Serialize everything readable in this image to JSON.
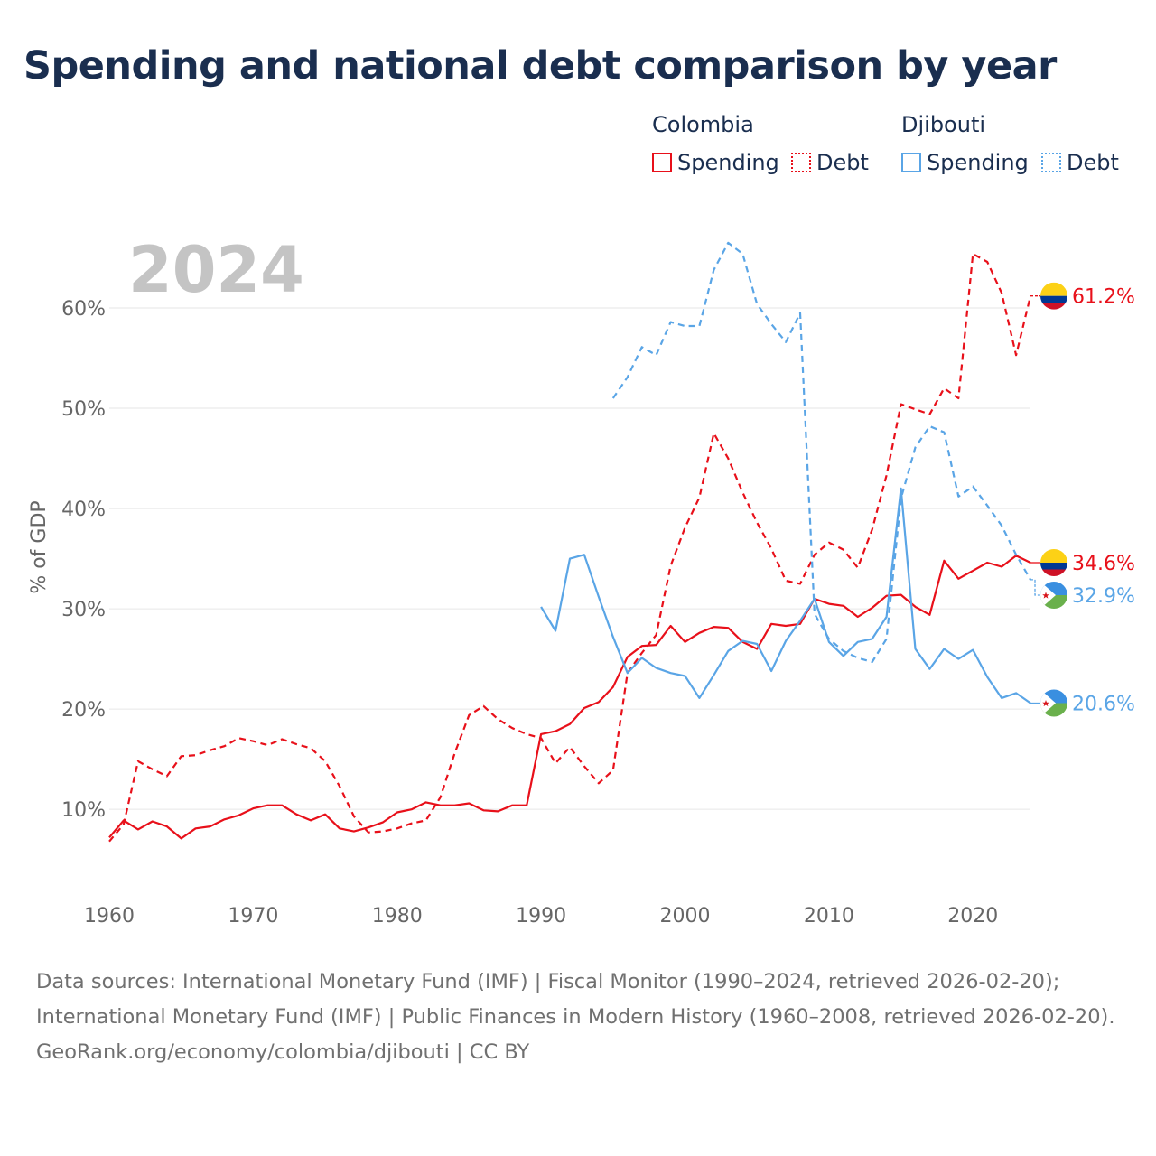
{
  "title": "Spending and national debt comparison by year",
  "legend": {
    "groups": [
      {
        "name": "Colombia",
        "items": [
          {
            "label": "Spending"
          },
          {
            "label": "Debt"
          }
        ]
      },
      {
        "name": "Djibouti",
        "items": [
          {
            "label": "Spending"
          },
          {
            "label": "Debt"
          }
        ]
      }
    ]
  },
  "year_label": "2024",
  "colors": {
    "colombia": "#e8101a",
    "djibouti": "#5aa5e6",
    "grid": "#e6e6e6",
    "year": "#c4c4c4",
    "title": "#1a2e4f"
  },
  "icons": {
    "colombia_flag": "colombia-flag-icon",
    "djibouti_flag": "djibouti-flag-icon"
  },
  "chart_data": {
    "type": "line",
    "title": "Spending and national debt comparison by year",
    "xlabel": "",
    "ylabel": "% of GDP",
    "xlim": [
      1960,
      2024
    ],
    "ylim": [
      2,
      70
    ],
    "x_ticks": [
      1960,
      1970,
      1980,
      1990,
      2000,
      2010,
      2020
    ],
    "x_tick_labels": [
      "1960",
      "1970",
      "1980",
      "1990",
      "2000",
      "2010",
      "2020"
    ],
    "y_ticks": [
      10,
      20,
      30,
      40,
      50,
      60
    ],
    "y_tick_labels": [
      "10%",
      "20%",
      "30%",
      "40%",
      "50%",
      "60%"
    ],
    "series": [
      {
        "name": "Colombia Spending",
        "country": "Colombia",
        "measure": "Spending",
        "style": "solid",
        "color": "#e8101a",
        "end_label": "34.6%",
        "x": [
          1960,
          1961,
          1962,
          1963,
          1964,
          1965,
          1966,
          1967,
          1968,
          1969,
          1970,
          1971,
          1972,
          1973,
          1974,
          1975,
          1976,
          1977,
          1978,
          1979,
          1980,
          1981,
          1982,
          1983,
          1984,
          1985,
          1986,
          1987,
          1988,
          1989,
          1990,
          1991,
          1992,
          1993,
          1994,
          1995,
          1996,
          1997,
          1998,
          1999,
          2000,
          2001,
          2002,
          2003,
          2004,
          2005,
          2006,
          2007,
          2008,
          2009,
          2010,
          2011,
          2012,
          2013,
          2014,
          2015,
          2016,
          2017,
          2018,
          2019,
          2020,
          2021,
          2022,
          2023,
          2024
        ],
        "values": [
          7.2,
          8.9,
          8.0,
          8.8,
          8.3,
          7.1,
          8.1,
          8.3,
          9.0,
          9.4,
          10.1,
          10.4,
          10.4,
          9.5,
          8.9,
          9.5,
          8.1,
          7.8,
          8.2,
          8.7,
          9.7,
          10.0,
          10.7,
          10.4,
          10.4,
          10.6,
          9.9,
          9.8,
          10.4,
          10.4,
          17.5,
          17.8,
          18.5,
          20.1,
          20.7,
          22.2,
          25.2,
          26.3,
          26.4,
          28.3,
          26.7,
          27.6,
          28.2,
          28.1,
          26.7,
          26.0,
          28.5,
          28.3,
          28.5,
          31.0,
          30.5,
          30.3,
          29.2,
          30.1,
          31.3,
          31.4,
          30.2,
          29.4,
          34.8,
          33.0,
          33.8,
          34.6,
          34.2,
          35.3,
          34.6
        ]
      },
      {
        "name": "Colombia Debt",
        "country": "Colombia",
        "measure": "Debt",
        "style": "dashed",
        "color": "#e8101a",
        "end_label": "61.2%",
        "x": [
          1960,
          1961,
          1962,
          1963,
          1964,
          1965,
          1966,
          1967,
          1968,
          1969,
          1970,
          1971,
          1972,
          1973,
          1974,
          1975,
          1976,
          1977,
          1978,
          1979,
          1980,
          1981,
          1982,
          1983,
          1984,
          1985,
          1986,
          1987,
          1988,
          1989,
          1990,
          1991,
          1992,
          1993,
          1994,
          1995,
          1996,
          1997,
          1998,
          1999,
          2000,
          2001,
          2002,
          2003,
          2004,
          2005,
          2006,
          2007,
          2008,
          2009,
          2010,
          2011,
          2012,
          2013,
          2014,
          2015,
          2016,
          2017,
          2018,
          2019,
          2020,
          2021,
          2022,
          2023,
          2024
        ],
        "values": [
          6.8,
          8.5,
          14.8,
          14.0,
          13.3,
          15.3,
          15.4,
          15.9,
          16.3,
          17.1,
          16.8,
          16.4,
          17.0,
          16.5,
          16.1,
          14.8,
          12.3,
          9.3,
          7.7,
          7.8,
          8.1,
          8.6,
          8.9,
          11.2,
          15.6,
          19.4,
          20.3,
          19.0,
          18.1,
          17.5,
          17.1,
          14.6,
          16.2,
          14.3,
          12.6,
          13.9,
          23.6,
          25.6,
          27.4,
          34.3,
          38.1,
          41.1,
          47.5,
          45.0,
          41.6,
          38.6,
          36.0,
          32.8,
          32.5,
          35.4,
          36.6,
          35.9,
          34.1,
          37.9,
          43.3,
          50.4,
          49.9,
          49.4,
          52.0,
          51.0,
          65.4,
          64.6,
          61.5,
          55.3,
          61.2
        ]
      },
      {
        "name": "Djibouti Spending",
        "country": "Djibouti",
        "measure": "Spending",
        "style": "solid",
        "color": "#5aa5e6",
        "end_label": "20.6%",
        "x": [
          1990,
          1991,
          1992,
          1993,
          1994,
          1995,
          1996,
          1997,
          1998,
          1999,
          2000,
          2001,
          2002,
          2003,
          2004,
          2005,
          2006,
          2007,
          2008,
          2009,
          2010,
          2011,
          2012,
          2013,
          2014,
          2015,
          2016,
          2017,
          2018,
          2019,
          2020,
          2021,
          2022,
          2023,
          2024
        ],
        "values": [
          30.2,
          27.8,
          35.0,
          35.4,
          31.2,
          27.2,
          23.6,
          25.1,
          24.1,
          23.6,
          23.3,
          21.1,
          23.4,
          25.8,
          26.8,
          26.5,
          23.8,
          26.8,
          28.8,
          31.0,
          26.7,
          25.3,
          26.7,
          27.0,
          29.2,
          42.0,
          26.0,
          24.0,
          26.0,
          25.0,
          25.9,
          23.2,
          21.1,
          21.6,
          20.6
        ]
      },
      {
        "name": "Djibouti Debt",
        "country": "Djibouti",
        "measure": "Debt",
        "style": "dashed",
        "color": "#5aa5e6",
        "end_label": "32.9%",
        "x": [
          1995,
          1996,
          1997,
          1998,
          1999,
          2000,
          2001,
          2002,
          2003,
          2004,
          2005,
          2006,
          2007,
          2008,
          2009,
          2010,
          2011,
          2012,
          2013,
          2014,
          2015,
          2016,
          2017,
          2018,
          2019,
          2020,
          2021,
          2022,
          2023,
          2024
        ],
        "values": [
          51.0,
          53.1,
          56.1,
          55.3,
          58.6,
          58.2,
          58.2,
          63.8,
          66.5,
          65.4,
          60.4,
          58.4,
          56.6,
          59.5,
          29.5,
          27.0,
          25.8,
          25.1,
          24.7,
          27.0,
          41.0,
          46.1,
          48.2,
          47.6,
          41.2,
          42.2,
          40.3,
          38.3,
          35.4,
          32.9
        ]
      }
    ]
  },
  "footer": {
    "sources": "Data sources: International Monetary Fund (IMF) | Fiscal Monitor (1990–2024, retrieved 2026-02-20); International Monetary Fund (IMF) | Public Finances in Modern History (1960–2008, retrieved 2026-02-20).",
    "credit": "GeoRank.org/economy/colombia/djibouti | CC BY"
  }
}
